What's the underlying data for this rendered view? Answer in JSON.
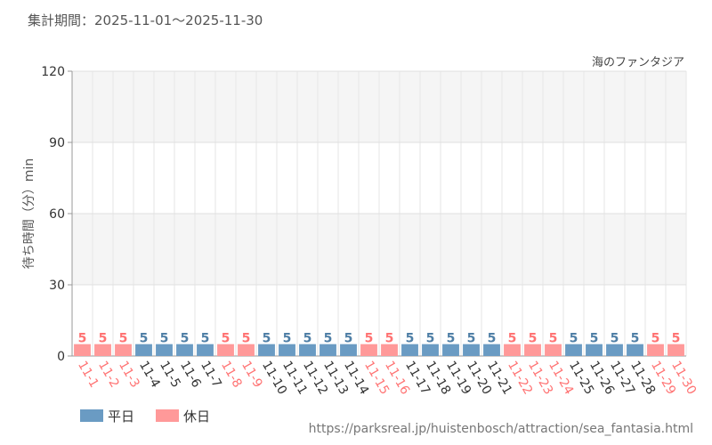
{
  "header": {
    "period_label": "集計期間：2025-11-01～2025-11-30"
  },
  "footer": {
    "source_url": "https://parksreal.jp/huistenbosch/attraction/sea_fantasia.html"
  },
  "colors": {
    "weekday": "#6a9bc3",
    "holiday": "#ff9999",
    "weekday_label": "#4f7fa6",
    "holiday_label": "#ff7373",
    "band_shaded": "#f5f5f5",
    "axis_text": "#333333"
  },
  "chart_data": {
    "type": "bar",
    "title": "海のファンタジア",
    "ylabel": "待ち時間（分）min",
    "xlabel": "",
    "ylim": [
      0,
      120
    ],
    "yticks": [
      0,
      30,
      60,
      90,
      120
    ],
    "grid": true,
    "legend_position": "bottom-left",
    "categories": [
      "11-1",
      "11-2",
      "11-3",
      "11-4",
      "11-5",
      "11-6",
      "11-7",
      "11-8",
      "11-9",
      "11-10",
      "11-11",
      "11-12",
      "11-13",
      "11-14",
      "11-15",
      "11-16",
      "11-17",
      "11-18",
      "11-19",
      "11-20",
      "11-21",
      "11-22",
      "11-23",
      "11-24",
      "11-25",
      "11-26",
      "11-27",
      "11-28",
      "11-29",
      "11-30"
    ],
    "values": [
      5,
      5,
      5,
      5,
      5,
      5,
      5,
      5,
      5,
      5,
      5,
      5,
      5,
      5,
      5,
      5,
      5,
      5,
      5,
      5,
      5,
      5,
      5,
      5,
      5,
      5,
      5,
      5,
      5,
      5
    ],
    "day_type": [
      "holiday",
      "holiday",
      "holiday",
      "weekday",
      "weekday",
      "weekday",
      "weekday",
      "holiday",
      "holiday",
      "weekday",
      "weekday",
      "weekday",
      "weekday",
      "weekday",
      "holiday",
      "holiday",
      "weekday",
      "weekday",
      "weekday",
      "weekday",
      "weekday",
      "holiday",
      "holiday",
      "holiday",
      "weekday",
      "weekday",
      "weekday",
      "weekday",
      "holiday",
      "holiday"
    ],
    "legend": [
      {
        "key": "weekday",
        "label": "平日"
      },
      {
        "key": "holiday",
        "label": "休日"
      }
    ]
  }
}
